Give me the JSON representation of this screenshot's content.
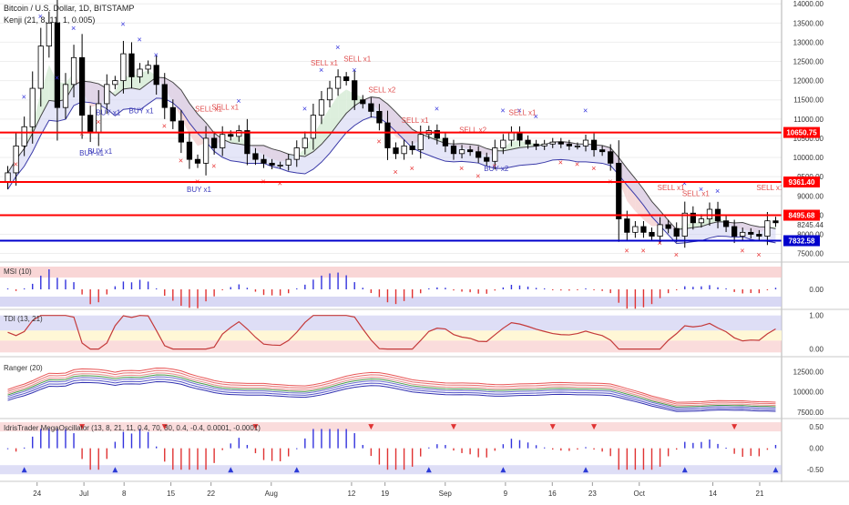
{
  "header": {
    "symbol": "Bitcoin / U.S. Dollar, 1D, BITSTAMP",
    "study_main": "Kenji (21, 8, 11, 1, 0.005)"
  },
  "chart_data": [
    {
      "type": "candlestick",
      "panel": "price",
      "x_ticks": [
        "24",
        "Jul",
        "8",
        "15",
        "22",
        "Aug",
        "12",
        "19",
        "Sep",
        "9",
        "16",
        "23",
        "Oct",
        "14",
        "21"
      ],
      "y_ticks": [
        7500,
        8000,
        8500,
        9000,
        9500,
        10000,
        10500,
        11000,
        11500,
        12000,
        12500,
        13000,
        13500,
        14000
      ],
      "ylim": [
        7300,
        14100
      ],
      "closes": [
        9600,
        10300,
        10800,
        11800,
        12900,
        13500,
        11300,
        11900,
        12600,
        11100,
        10650,
        11400,
        11900,
        12000,
        12700,
        12100,
        12300,
        12400,
        11900,
        11300,
        10950,
        10400,
        9950,
        9850,
        10500,
        10250,
        10600,
        10550,
        10700,
        10100,
        9950,
        9850,
        9800,
        9800,
        9950,
        10250,
        10500,
        11100,
        11500,
        11800,
        12100,
        12000,
        11500,
        11400,
        11200,
        10900,
        10250,
        10100,
        10300,
        10200,
        10600,
        10700,
        10500,
        10300,
        10100,
        10200,
        10150,
        10000,
        9900,
        10250,
        10450,
        10650,
        10450,
        10350,
        10300,
        10350,
        10400,
        10350,
        10300,
        10300,
        10450,
        10200,
        10150,
        9850,
        8400,
        8050,
        8200,
        8050,
        7950,
        8250,
        8150,
        7950,
        8550,
        8300,
        8400,
        8650,
        8350,
        8200,
        7950,
        8050,
        8000,
        7950,
        8350,
        8300
      ],
      "levels": [
        {
          "value": 10650.75,
          "label": "10650.75",
          "color": "#ff0000"
        },
        {
          "value": 9361.4,
          "label": "9361.40",
          "color": "#ff0000"
        },
        {
          "value": 8495.68,
          "label": "8495.68",
          "color": "#ff0000"
        },
        {
          "value": 7832.58,
          "label": "7832.58",
          "color": "#0000cc"
        }
      ],
      "last_price_label": "8245.44",
      "annotations": [
        {
          "text": "BUY x1",
          "color": "#3b3bbb"
        },
        {
          "text": "BUY x1",
          "color": "#3b3bbb"
        },
        {
          "text": "BUY x1",
          "color": "#3b3bbb"
        },
        {
          "text": "BUY x1",
          "color": "#3b3bbb"
        },
        {
          "text": "BUY x1",
          "color": "#3b3bbb"
        },
        {
          "text": "BUY x2",
          "color": "#3b3bbb"
        },
        {
          "text": "SELL x1",
          "color": "#e05050"
        },
        {
          "text": "SELL x1",
          "color": "#e05050"
        },
        {
          "text": "SELL x1",
          "color": "#e05050"
        },
        {
          "text": "SELL x1",
          "color": "#e05050"
        },
        {
          "text": "SELL x2",
          "color": "#e05050"
        },
        {
          "text": "SELL x1",
          "color": "#e05050"
        },
        {
          "text": "SELL x2",
          "color": "#e05050"
        },
        {
          "text": "SELL x1",
          "color": "#e05050"
        },
        {
          "text": "SELL x1",
          "color": "#e05050"
        },
        {
          "text": "SELL x1",
          "color": "#e05050"
        },
        {
          "text": "SELL x1",
          "color": "#e05050"
        }
      ]
    },
    {
      "type": "bar",
      "panel": "msi",
      "title": "MSI (10)",
      "y_ticks": [
        "0.00"
      ],
      "ylim": [
        -1,
        1
      ]
    },
    {
      "type": "line",
      "panel": "tdi",
      "title": "TDI (13, 21)",
      "y_ticks": [
        "1.00",
        "0.00"
      ],
      "ylim": [
        -0.2,
        1.1
      ]
    },
    {
      "type": "line",
      "panel": "ranger",
      "title": "Ranger (20)",
      "y_ticks": [
        7500,
        10000,
        12500
      ],
      "ylim": [
        6800,
        14000
      ]
    },
    {
      "type": "bar",
      "panel": "megaoscillator",
      "title": "IdrisTrader MegaOscillator (13, 8, 21, 11, 0.4, 70, 30, 0.4, -0.4, 0.0001, -0.0001)",
      "y_ticks": [
        "0.50",
        "0.00",
        "-0.50"
      ],
      "ylim": [
        -0.75,
        0.65
      ]
    }
  ],
  "colors": {
    "up_candle": "#ffffff",
    "down_candle": "#000000",
    "buy_marker": "#3333dd",
    "sell_marker": "#e83333",
    "level_red": "#ff0000",
    "level_blue": "#0000cc",
    "upper_band_zone": "#f6c4c4",
    "lower_band_zone": "#c8c8f0",
    "mid_zone": "#fff7d6"
  }
}
